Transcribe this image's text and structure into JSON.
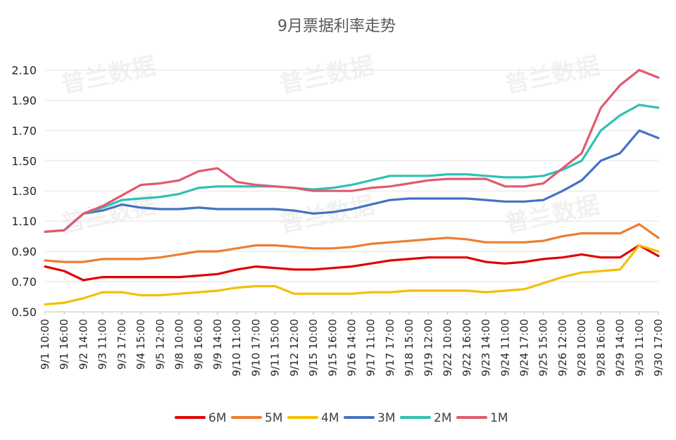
{
  "chart_data": {
    "type": "line",
    "title": "9月票据利率走势",
    "watermark": "普兰数据",
    "ylim": [
      0.5,
      2.2
    ],
    "yticks": [
      "0.50",
      "0.70",
      "0.90",
      "1.10",
      "1.30",
      "1.50",
      "1.70",
      "1.90",
      "2.10"
    ],
    "grid": true,
    "legend_position": "bottom",
    "categories": [
      "9/1 10:00",
      "9/1 16:00",
      "9/2 14:00",
      "9/3 11:00",
      "9/3 17:00",
      "9/4 15:00",
      "9/5 12:00",
      "9/8 10:00",
      "9/8 16:00",
      "9/9 14:00",
      "9/10 11:00",
      "9/10 17:00",
      "9/11 15:00",
      "9/12 12:00",
      "9/15 10:00",
      "9/15 16:00",
      "9/16 14:00",
      "9/17 11:00",
      "9/17 17:00",
      "9/18 15:00",
      "9/19 12:00",
      "9/22 10:00",
      "9/22 16:00",
      "9/23 14:00",
      "9/24 11:00",
      "9/24 17:00",
      "9/25 15:00",
      "9/26 12:00",
      "9/28 10:00",
      "9/28 16:00",
      "9/29 14:00",
      "9/30 11:00",
      "9/30 17:00"
    ],
    "series": [
      {
        "name": "6M",
        "color": "#e00000",
        "values": [
          0.8,
          0.77,
          0.71,
          0.73,
          0.73,
          0.73,
          0.73,
          0.73,
          0.74,
          0.75,
          0.78,
          0.8,
          0.79,
          0.78,
          0.78,
          0.79,
          0.8,
          0.82,
          0.84,
          0.85,
          0.86,
          0.86,
          0.86,
          0.83,
          0.82,
          0.83,
          0.85,
          0.86,
          0.88,
          0.86,
          0.86,
          0.94,
          0.87
        ]
      },
      {
        "name": "5M",
        "color": "#ed7d31",
        "values": [
          0.84,
          0.83,
          0.83,
          0.85,
          0.85,
          0.85,
          0.86,
          0.88,
          0.9,
          0.9,
          0.92,
          0.94,
          0.94,
          0.93,
          0.92,
          0.92,
          0.93,
          0.95,
          0.96,
          0.97,
          0.98,
          0.99,
          0.98,
          0.96,
          0.96,
          0.96,
          0.97,
          1.0,
          1.02,
          1.02,
          1.02,
          1.08,
          0.99
        ]
      },
      {
        "name": "4M",
        "color": "#f2c000",
        "values": [
          0.55,
          0.56,
          0.59,
          0.63,
          0.63,
          0.61,
          0.61,
          0.62,
          0.63,
          0.64,
          0.66,
          0.67,
          0.67,
          0.62,
          0.62,
          0.62,
          0.62,
          0.63,
          0.63,
          0.64,
          0.64,
          0.64,
          0.64,
          0.63,
          0.64,
          0.65,
          0.69,
          0.73,
          0.76,
          0.77,
          0.78,
          0.94,
          0.9
        ]
      },
      {
        "name": "3M",
        "color": "#4472c4",
        "values": [
          1.03,
          1.04,
          1.15,
          1.17,
          1.21,
          1.19,
          1.18,
          1.18,
          1.19,
          1.18,
          1.18,
          1.18,
          1.18,
          1.17,
          1.15,
          1.16,
          1.18,
          1.21,
          1.24,
          1.25,
          1.25,
          1.25,
          1.25,
          1.24,
          1.23,
          1.23,
          1.24,
          1.3,
          1.37,
          1.5,
          1.55,
          1.7,
          1.65
        ]
      },
      {
        "name": "2M",
        "color": "#2fc0b5",
        "values": [
          1.03,
          1.04,
          1.15,
          1.19,
          1.24,
          1.25,
          1.26,
          1.28,
          1.32,
          1.33,
          1.33,
          1.33,
          1.33,
          1.32,
          1.31,
          1.32,
          1.34,
          1.37,
          1.4,
          1.4,
          1.4,
          1.41,
          1.41,
          1.4,
          1.39,
          1.39,
          1.4,
          1.44,
          1.5,
          1.7,
          1.8,
          1.87,
          1.85
        ]
      },
      {
        "name": "1M",
        "color": "#e05a6e",
        "values": [
          1.03,
          1.04,
          1.15,
          1.2,
          1.27,
          1.34,
          1.35,
          1.37,
          1.43,
          1.45,
          1.36,
          1.34,
          1.33,
          1.32,
          1.3,
          1.3,
          1.3,
          1.32,
          1.33,
          1.35,
          1.37,
          1.38,
          1.38,
          1.38,
          1.33,
          1.33,
          1.35,
          1.45,
          1.55,
          1.85,
          2.0,
          2.1,
          2.05
        ]
      }
    ]
  }
}
